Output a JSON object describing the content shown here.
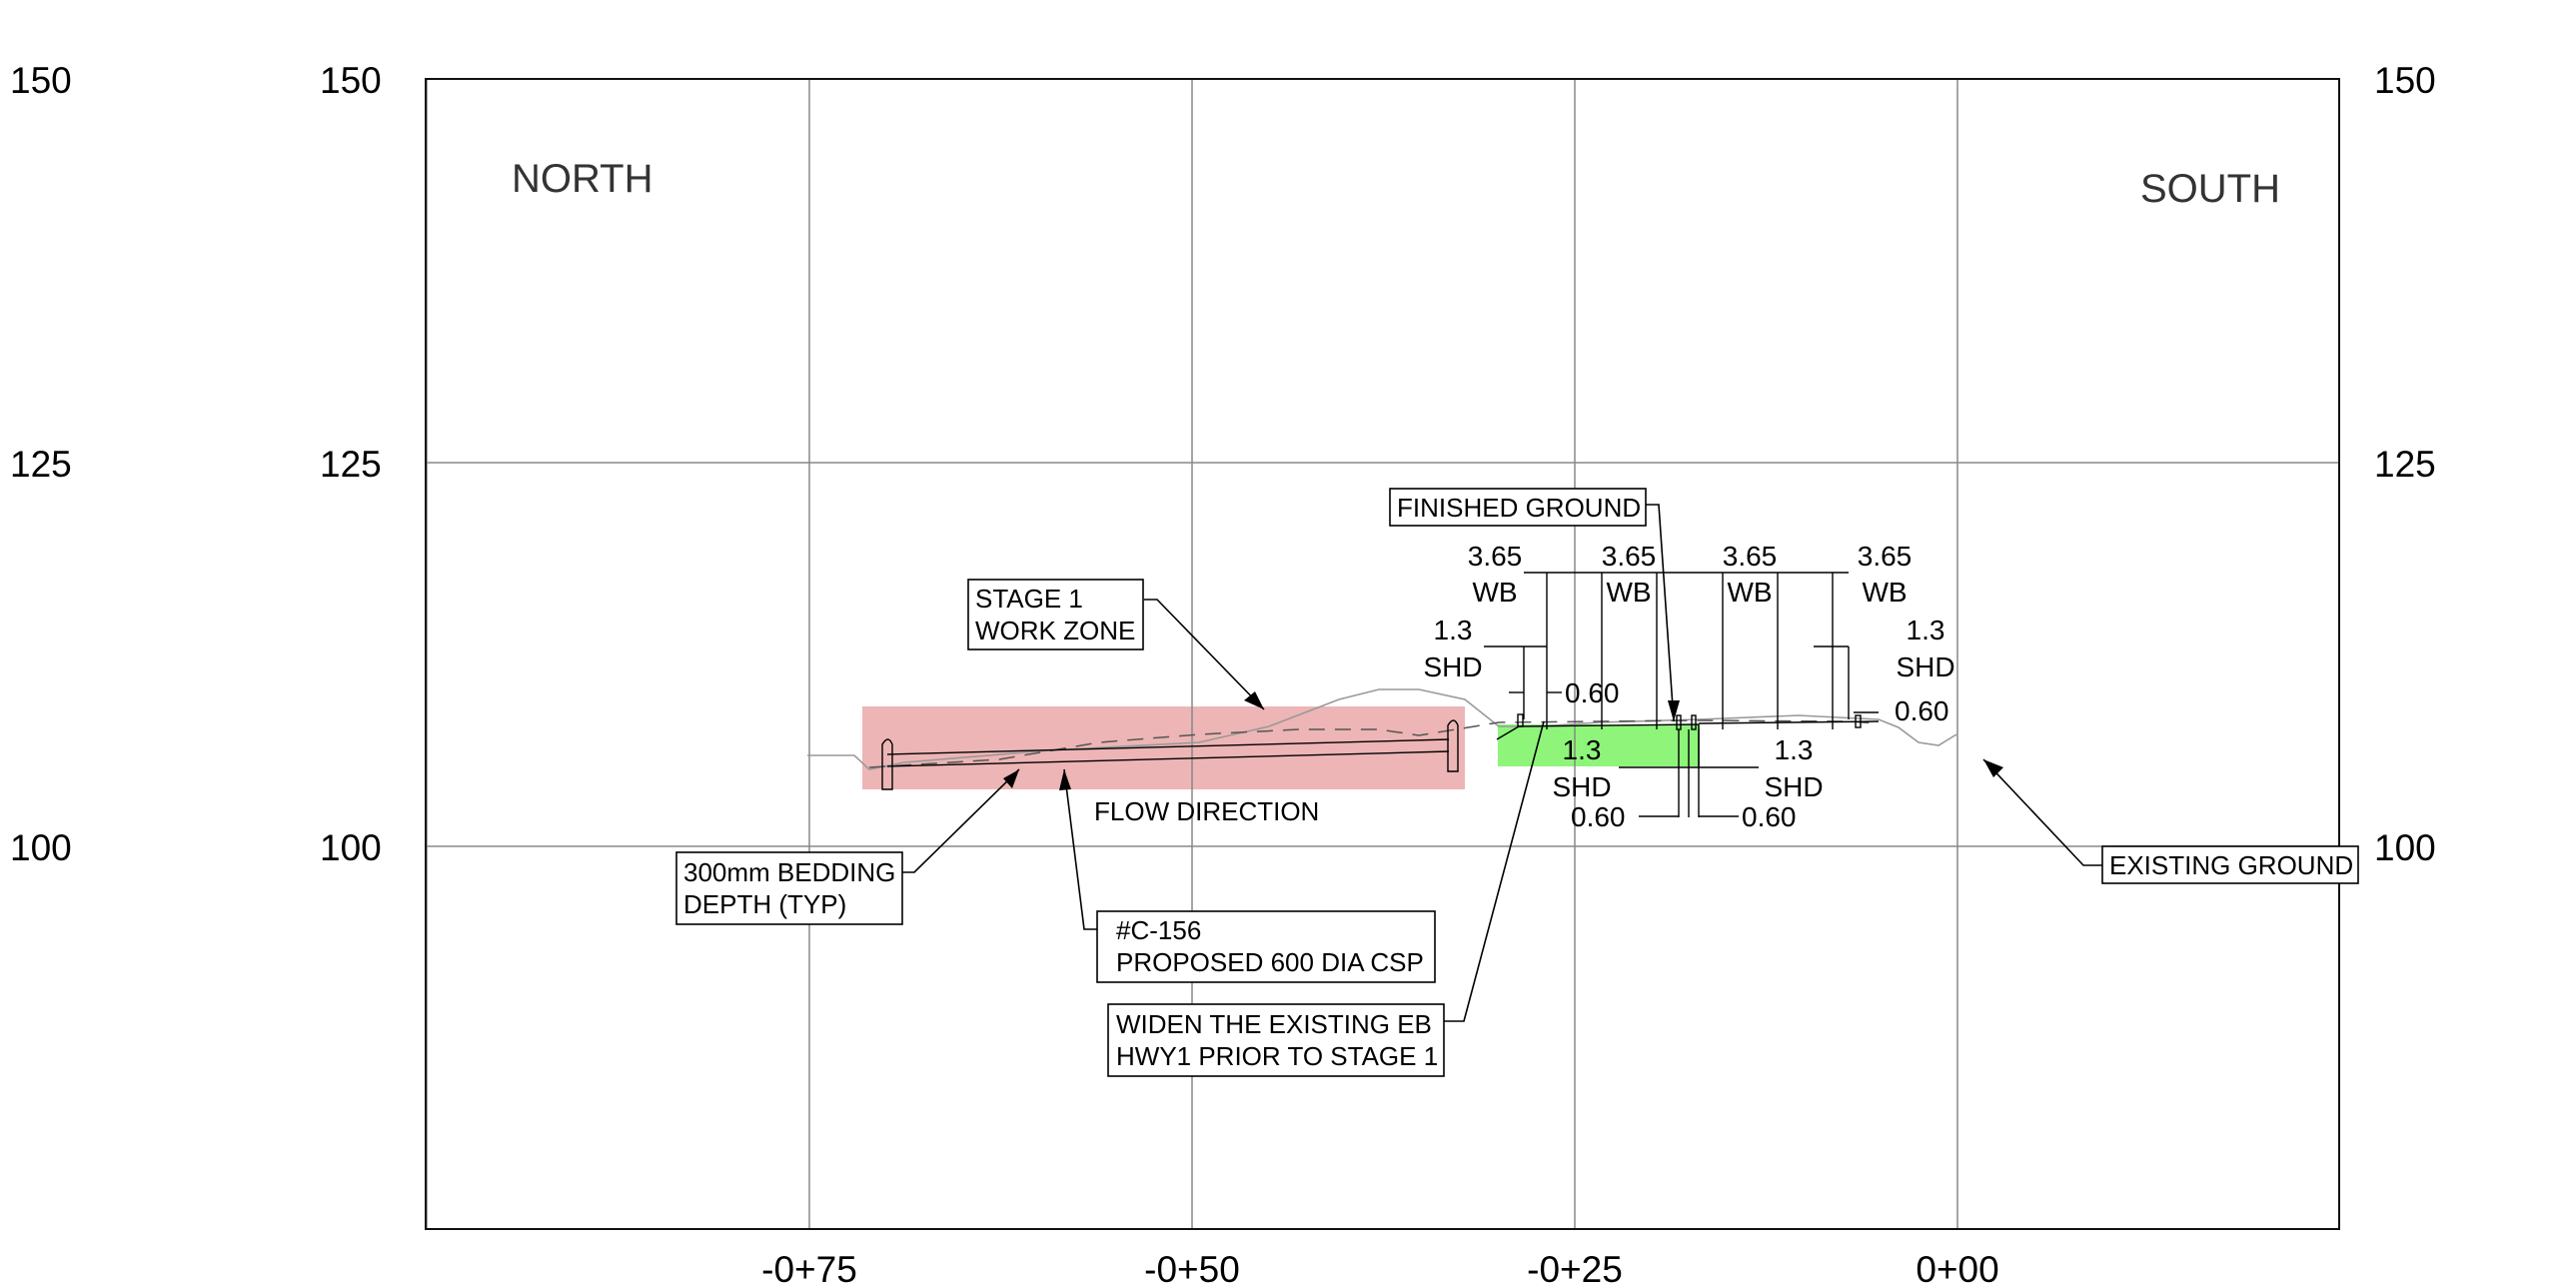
{
  "drawing": {
    "elevation_axis": {
      "ticks": [
        "150",
        "125",
        "100"
      ],
      "grid_values": [
        150,
        125,
        100,
        75
      ]
    },
    "station_axis": {
      "ticks": [
        "-0+75",
        "-0+50",
        "-0+25",
        "0+00"
      ],
      "grid_values": [
        -100,
        -75,
        -50,
        -25,
        0,
        25
      ]
    },
    "directions": {
      "left": "NORTH",
      "right": "SOUTH"
    },
    "zones": {
      "work_zone_color": "#edb5b5",
      "widening_color": "#8ef57a"
    },
    "labels": {
      "stage1": [
        "STAGE 1",
        "WORK ZONE"
      ],
      "finished_ground": "FINISHED GROUND",
      "existing_ground": "EXISTING GROUND",
      "bedding": [
        "300mm BEDDING",
        "DEPTH (TYP)"
      ],
      "culvert": [
        "#C-156",
        "PROPOSED 600 DIA CSP"
      ],
      "widen": [
        "WIDEN THE EXISTING EB",
        "HWY1 PRIOR TO STAGE 1"
      ],
      "flow": "FLOW DIRECTION"
    },
    "dims": {
      "wb": "3.65",
      "wb_abbr": "WB",
      "shd": "1.3",
      "shd_abbr": "SHD",
      "median": "0.60"
    }
  }
}
